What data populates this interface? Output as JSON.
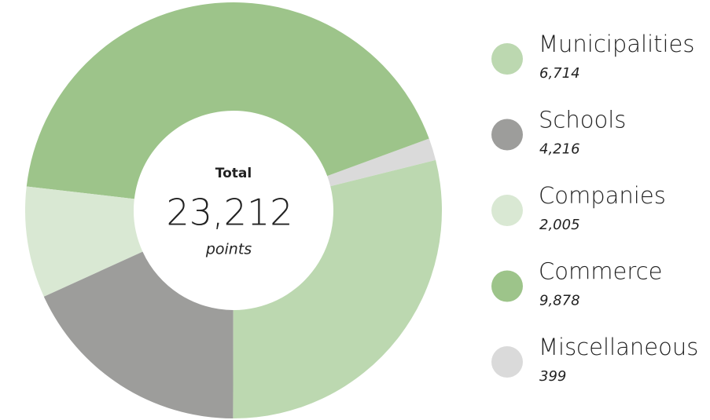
{
  "chart_data": {
    "type": "donut",
    "categories": [
      "Municipalities",
      "Schools",
      "Companies",
      "Commerce",
      "Miscellaneous"
    ],
    "values": [
      6714,
      4216,
      2005,
      9878,
      399
    ],
    "value_labels": [
      "6,714",
      "4,216",
      "2,005",
      "9,878",
      "399"
    ],
    "colors": [
      "#bcd8b0",
      "#9d9d9b",
      "#d9e8d3",
      "#9dc48a",
      "#dadada"
    ],
    "center": {
      "title": "Total",
      "value": 23212,
      "value_label": "23,212",
      "unit": "points"
    },
    "legend": "right"
  }
}
